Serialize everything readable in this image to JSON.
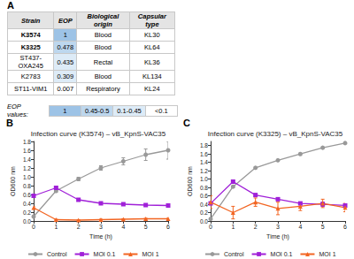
{
  "table": {
    "label": "A",
    "header": [
      "Strain",
      "EOP",
      "Biological origin",
      "Capsular type"
    ],
    "rows": [
      {
        "cells": [
          "K3574",
          1,
          "Blood",
          "KL30"
        ],
        "color": "#9dc3e6",
        "bold": true
      },
      {
        "cells": [
          "K3325",
          0.478,
          "Blood",
          "KL64"
        ],
        "color": "#bdd7ee",
        "bold": true
      },
      {
        "cells": [
          "ST437-OXA245",
          0.435,
          "Rectal",
          "KL36"
        ],
        "color": "#ddebf7",
        "bold": false
      },
      {
        "cells": [
          "K2783",
          0.309,
          "Blood",
          "KL134"
        ],
        "color": "#ddebf7",
        "bold": false
      },
      {
        "cells": [
          "ST11-VIM1",
          0.007,
          "Respiratory",
          "KL24"
        ],
        "color": "#ffffff",
        "bold": false
      }
    ],
    "legend_title": "EOP values:",
    "legend": [
      {
        "label": "1",
        "color": "#9dc3e6"
      },
      {
        "label": "0.45-0.5",
        "color": "#bdd7ee"
      },
      {
        "label": "0.1-0.45",
        "color": "#ddebf7"
      },
      {
        "label": "<0.1",
        "color": "#ffffff"
      }
    ]
  },
  "chart_data": [
    {
      "type": "line",
      "annotations": [
        "B"
      ],
      "title": "Infection curve (K3574) – vB_KpnS-VAC35",
      "x_label": "Time (h)",
      "y_label": "OD600 nm",
      "x": [
        0,
        1,
        2,
        3,
        4,
        5,
        6
      ],
      "xlim": [
        0,
        6
      ],
      "xticks": [
        0,
        1,
        2,
        3,
        4,
        5,
        6
      ],
      "ylim": [
        0,
        1.8
      ],
      "yticks": [
        {
          "value": 0,
          "label": "0.0"
        },
        {
          "value": 0.2,
          "label": "0.2"
        },
        {
          "value": 0.4,
          "label": "0.4"
        },
        {
          "value": 0.6,
          "label": "0.6"
        },
        {
          "value": 0.8,
          "label": "0.8"
        },
        {
          "value": 1,
          "label": "1.0"
        },
        {
          "value": 1.2,
          "label": "1.2"
        },
        {
          "value": 1.4,
          "label": "1.4"
        },
        {
          "value": 1.6,
          "label": "1.6"
        },
        {
          "value": 1.8,
          "label": "1.8"
        }
      ],
      "legend": "bottom",
      "series": [
        {
          "name": "Control",
          "color": "#999999",
          "marker": "circle",
          "values": [
            0.1,
            0.68,
            0.95,
            1.2,
            1.35,
            1.5,
            1.6
          ],
          "errors": [
            0.02,
            0.03,
            0.04,
            0.05,
            0.08,
            0.13,
            0.2
          ]
        },
        {
          "name": "MOI 0.1",
          "color": "#a020d8",
          "marker": "square",
          "values": [
            0.57,
            0.75,
            0.48,
            0.4,
            0.38,
            0.36,
            0.35
          ],
          "errors": [
            0.02,
            0.03,
            0.03,
            0.02,
            0.02,
            0.02,
            0.02
          ]
        },
        {
          "name": "MOI 1",
          "color": "#f26522",
          "marker": "triangle",
          "values": [
            0.3,
            0.03,
            0.02,
            0.03,
            0.04,
            0.05,
            0.05
          ],
          "errors": [
            0.02,
            0.01,
            0.01,
            0.01,
            0.01,
            0.01,
            0.01
          ]
        }
      ]
    },
    {
      "type": "line",
      "annotations": [
        "C"
      ],
      "title": "Infection curve (K3325) – vB_KpnS-VAC35",
      "x_label": "Time (h)",
      "y_label": "OD600 nm",
      "x": [
        0,
        1,
        2,
        3,
        4,
        5,
        6
      ],
      "xlim": [
        0,
        6
      ],
      "xticks": [
        0,
        1,
        2,
        3,
        4,
        5,
        6
      ],
      "ylim": [
        0,
        1.9
      ],
      "yticks": [
        {
          "value": 0,
          "label": "0.0"
        },
        {
          "value": 0.2,
          "label": "0.2"
        },
        {
          "value": 0.4,
          "label": "0.4"
        },
        {
          "value": 0.6,
          "label": "0.6"
        },
        {
          "value": 0.8,
          "label": "0.8"
        },
        {
          "value": 1,
          "label": "1.0"
        },
        {
          "value": 1.2,
          "label": "1.2"
        },
        {
          "value": 1.4,
          "label": "1.4"
        },
        {
          "value": 1.6,
          "label": "1.6"
        },
        {
          "value": 1.8,
          "label": "1.8"
        }
      ],
      "legend": "bottom",
      "series": [
        {
          "name": "Control",
          "color": "#999999",
          "marker": "circle",
          "values": [
            0.05,
            0.82,
            1.27,
            1.45,
            1.6,
            1.75,
            1.86
          ],
          "errors": [
            0.01,
            0.02,
            0.02,
            0.02,
            0.02,
            0.02,
            0.02
          ]
        },
        {
          "name": "MOI 0.1",
          "color": "#a020d8",
          "marker": "square",
          "values": [
            0.42,
            0.94,
            0.62,
            0.52,
            0.42,
            0.4,
            0.37
          ],
          "errors": [
            0.02,
            0.02,
            0.03,
            0.02,
            0.03,
            0.05,
            0.03
          ]
        },
        {
          "name": "MOI 1",
          "color": "#f26522",
          "marker": "triangle",
          "values": [
            0.45,
            0.2,
            0.45,
            0.3,
            0.35,
            0.42,
            0.32
          ],
          "errors": [
            0.15,
            0.15,
            0.1,
            0.15,
            0.1,
            0.1,
            0.1
          ]
        }
      ]
    }
  ]
}
